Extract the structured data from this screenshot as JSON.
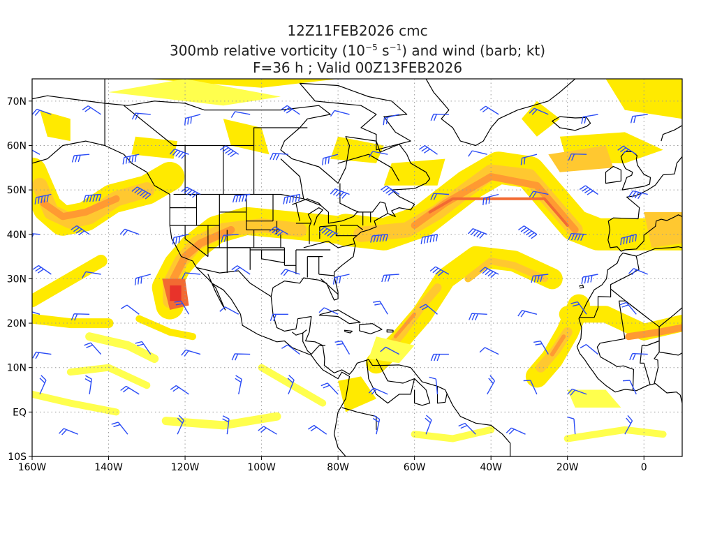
{
  "header": {
    "line1": "12Z11FEB2026 cmc",
    "line2_pre": "300mb relative vorticity (10",
    "line2_exp1": "−5",
    "line2_mid": " s",
    "line2_exp2": "−1",
    "line2_post": ") and wind (barb; kt)",
    "line3": "F=36 h ; Valid 00Z13FEB2026"
  },
  "map": {
    "lon_range": [
      -160,
      10
    ],
    "lat_range": [
      -10,
      75
    ],
    "lon_ticks": [
      "160W",
      "140W",
      "120W",
      "100W",
      "80W",
      "60W",
      "40W",
      "20W",
      "0"
    ],
    "lat_ticks": [
      "70N",
      "60N",
      "50N",
      "40N",
      "30N",
      "20N",
      "10N",
      "EQ",
      "10S"
    ],
    "grid": "dotted",
    "colors": {
      "light": "#ffff4d",
      "yellow": "#ffea00",
      "orange_light": "#ffc830",
      "orange": "#ff9a32",
      "red_orange": "#f26a32",
      "red": "#e8332a",
      "coast": "#000000",
      "barb": "#2b4cf5"
    }
  }
}
